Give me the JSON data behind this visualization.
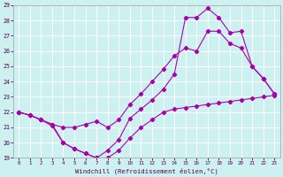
{
  "xlabel": "Windchill (Refroidissement éolien,°C)",
  "background_color": "#cdf0f0",
  "line_color": "#aa00aa",
  "xlim": [
    -0.5,
    23.5
  ],
  "ylim": [
    19,
    29
  ],
  "xticks": [
    0,
    1,
    2,
    3,
    4,
    5,
    6,
    7,
    8,
    9,
    10,
    11,
    12,
    13,
    14,
    15,
    16,
    17,
    18,
    19,
    20,
    21,
    22,
    23
  ],
  "yticks": [
    19,
    20,
    21,
    22,
    23,
    24,
    25,
    26,
    27,
    28,
    29
  ],
  "line1_x": [
    0,
    1,
    2,
    3,
    4,
    5,
    6,
    7,
    8,
    9,
    10,
    11,
    12,
    13,
    14,
    15,
    16,
    17,
    18,
    19,
    20,
    21,
    22,
    23
  ],
  "line1_y": [
    22.0,
    21.8,
    21.5,
    21.2,
    20.0,
    19.6,
    19.3,
    19.0,
    19.0,
    19.5,
    20.3,
    21.0,
    21.5,
    22.0,
    22.2,
    22.3,
    22.4,
    22.5,
    22.6,
    22.7,
    22.8,
    22.9,
    23.0,
    23.1
  ],
  "line2_x": [
    0,
    1,
    2,
    3,
    4,
    5,
    6,
    7,
    8,
    9,
    10,
    11,
    12,
    13,
    14,
    15,
    16,
    17,
    18,
    19,
    20,
    21,
    22,
    23
  ],
  "line2_y": [
    22.0,
    21.8,
    21.5,
    21.2,
    21.0,
    21.0,
    21.2,
    21.4,
    21.0,
    21.5,
    22.5,
    23.2,
    24.0,
    24.8,
    25.7,
    26.2,
    26.0,
    27.3,
    27.3,
    26.5,
    26.2,
    25.0,
    24.2,
    23.2
  ],
  "line3_x": [
    0,
    1,
    2,
    3,
    4,
    5,
    6,
    7,
    8,
    9,
    10,
    11,
    12,
    13,
    14,
    15,
    16,
    17,
    18,
    19,
    20,
    21,
    22,
    23
  ],
  "line3_y": [
    22.0,
    21.8,
    21.5,
    21.1,
    20.0,
    19.6,
    19.3,
    19.0,
    19.5,
    20.2,
    21.6,
    22.2,
    22.8,
    23.5,
    24.5,
    28.2,
    28.2,
    28.8,
    28.2,
    27.2,
    27.3,
    25.0,
    24.2,
    23.2
  ]
}
